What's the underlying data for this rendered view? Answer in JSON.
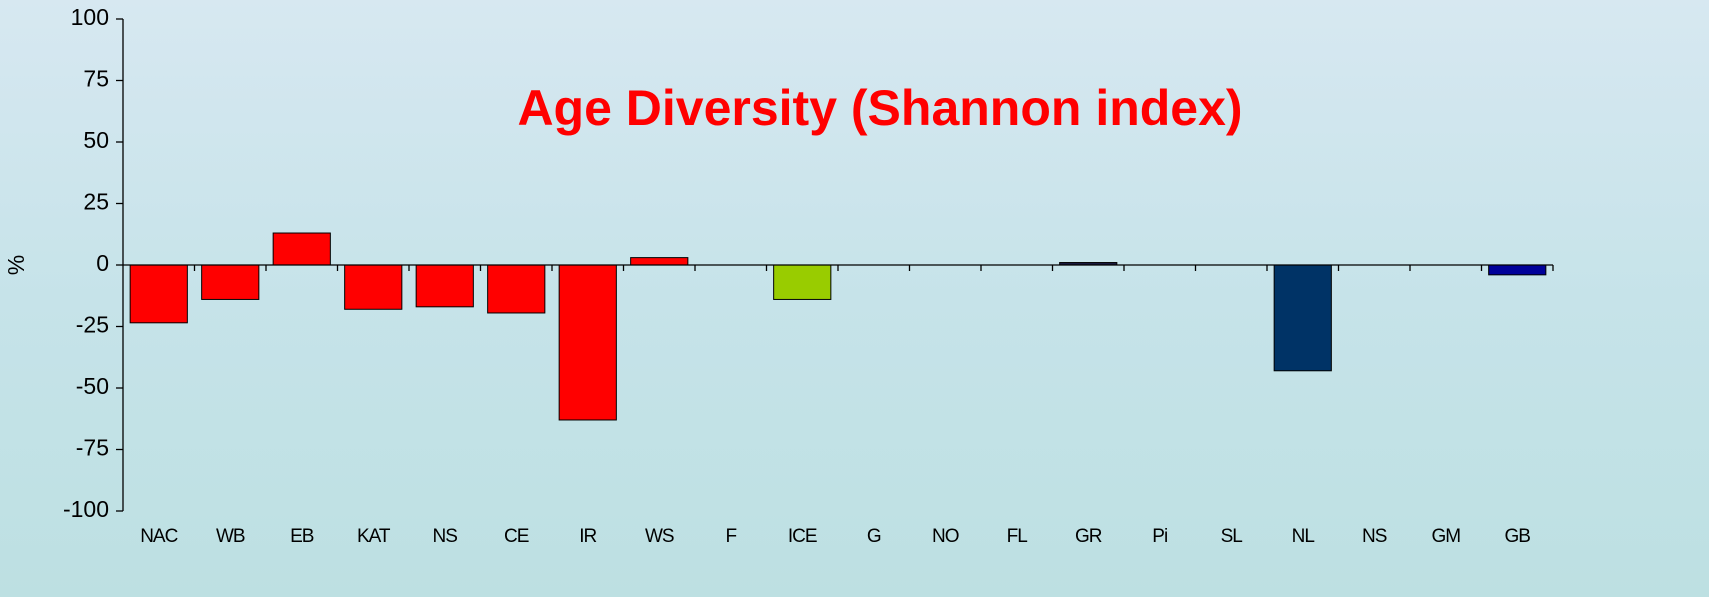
{
  "chart_data": {
    "type": "bar",
    "title": "Age Diversity (Shannon index)",
    "y_label": "%",
    "categories": [
      "NAC",
      "WB",
      "EB",
      "KAT",
      "NS",
      "CE",
      "IR",
      "WS",
      "F",
      "ICE",
      "G",
      "NO",
      "FL",
      "GR",
      "Pi",
      "SL",
      "NL",
      "NS",
      "GM",
      "GB"
    ],
    "values": [
      -23.5,
      -14,
      13,
      -18,
      -17,
      -19.5,
      -63,
      3,
      0,
      -14,
      0,
      0,
      0,
      1,
      0,
      0,
      -43,
      0,
      0,
      -4
    ],
    "colors": [
      "#ff0000",
      "#ff0000",
      "#ff0000",
      "#ff0000",
      "#ff0000",
      "#ff0000",
      "#ff0000",
      "#ff0000",
      "#ff0000",
      "#99cc00",
      "#003366",
      "#003366",
      "#003366",
      "#1a1a40",
      "#003366",
      "#003366",
      "#003366",
      "#003366",
      "#003366",
      "#000099"
    ],
    "ylim": [
      -100,
      100
    ],
    "yticks": [
      100,
      75,
      50,
      25,
      0,
      -25,
      -50,
      -75,
      -100
    ]
  }
}
